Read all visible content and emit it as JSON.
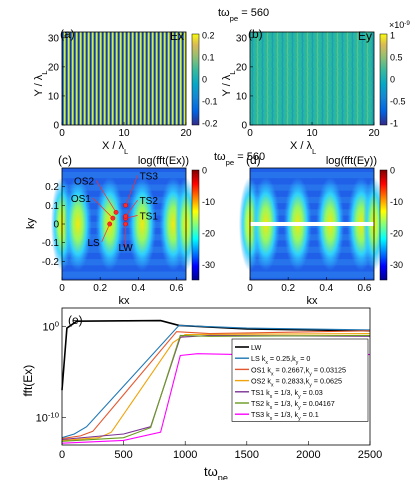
{
  "chart_data": [
    {
      "id": "a",
      "type": "heatmap",
      "panel_label": "(a)",
      "field_label": "Ex",
      "time_label": "tω",
      "time_sub": "pe",
      "time_value": "= 560",
      "xlabel": "X / λ",
      "xlabel_sub": "L",
      "ylabel": "Y / λ",
      "ylabel_sub": "L",
      "xlim": [
        0,
        20
      ],
      "ylim": [
        0,
        32
      ],
      "xticks": [
        "0",
        "10",
        "20"
      ],
      "yticks": [
        "0",
        "10",
        "20",
        "30"
      ],
      "colorbar": {
        "min": -0.2,
        "max": 0.2,
        "ticks": [
          "0.2",
          "0.1",
          "0",
          "-0.1",
          "-0.2"
        ],
        "multiplier": ""
      }
    },
    {
      "id": "b",
      "type": "heatmap",
      "panel_label": "(b)",
      "field_label": "Ey",
      "xlabel": "X / λ",
      "xlabel_sub": "L",
      "ylabel": "Y / λ",
      "ylabel_sub": "L",
      "xlim": [
        0,
        20
      ],
      "ylim": [
        0,
        32
      ],
      "xticks": [
        "0",
        "10",
        "20"
      ],
      "yticks": [
        "0",
        "10",
        "20",
        "30"
      ],
      "colorbar": {
        "min": -1,
        "max": 1,
        "ticks": [
          "1",
          "0.5",
          "0",
          "-0.5",
          "-1"
        ],
        "multiplier": "×10",
        "multiplier_exp": "-9"
      }
    },
    {
      "id": "c",
      "type": "heatmap",
      "panel_label": "(c)",
      "title": "log(fft(Ex))",
      "time_label": "tω",
      "time_sub": "pe",
      "time_value": "= 560",
      "xlabel": "kx",
      "ylabel": "ky",
      "xlim": [
        0,
        0.65
      ],
      "ylim": [
        -0.3,
        0.3
      ],
      "xticks": [
        "0",
        "0.2",
        "0.4",
        "0.6"
      ],
      "yticks": [
        "0.2",
        "0.1",
        "0",
        "-0.1",
        "-0.2"
      ],
      "colorbar": {
        "min": -35,
        "max": 0,
        "ticks": [
          "0",
          "-10",
          "-20",
          "-30"
        ]
      },
      "annotations": [
        {
          "label": "LS",
          "kx": 0.25,
          "ky": 0
        },
        {
          "label": "OS1",
          "kx": 0.2667,
          "ky": 0.03125
        },
        {
          "label": "OS2",
          "kx": 0.2833,
          "ky": 0.0625
        },
        {
          "label": "TS1",
          "kx": 0.3333,
          "ky": 0.03
        },
        {
          "label": "TS2",
          "kx": 0.3333,
          "ky": 0.04167
        },
        {
          "label": "TS3",
          "kx": 0.3333,
          "ky": 0.1
        },
        {
          "label": "LW",
          "kx": 0.3333,
          "ky": 0
        }
      ]
    },
    {
      "id": "d",
      "type": "heatmap",
      "panel_label": "(d)",
      "title": "log(fft(Ey))",
      "xlabel": "kx",
      "ylabel": "",
      "xlim": [
        0,
        0.65
      ],
      "ylim": [
        -0.3,
        0.3
      ],
      "xticks": [
        "0",
        "0.2",
        "0.4",
        "0.6"
      ],
      "yticks": [],
      "colorbar": {
        "min": -35,
        "max": 0,
        "ticks": [
          "0",
          "-10",
          "-20",
          "-30"
        ]
      }
    },
    {
      "id": "e",
      "type": "line",
      "panel_label": "(e)",
      "xlabel": "tω",
      "xlabel_sub": "pe",
      "ylabel": "fft(Ex)",
      "xlim": [
        0,
        2500
      ],
      "log_y": true,
      "ylim_log10": [
        -13,
        2
      ],
      "xticks": [
        "0",
        "500",
        "1000",
        "1500",
        "2000",
        "2500"
      ],
      "yticks": [
        {
          "base": "10",
          "exp": "0",
          "log10": 0
        },
        {
          "base": "10",
          "exp": "-10",
          "log10": -10
        }
      ],
      "legend_position": "right",
      "series": [
        {
          "name": "LW",
          "name_parts": [
            [
              "LW",
              ""
            ]
          ],
          "color": "#000000",
          "points": [
            [
              0,
              -7
            ],
            [
              40,
              -0.2
            ],
            [
              120,
              0.55
            ],
            [
              500,
              0.6
            ],
            [
              800,
              0.62
            ],
            [
              950,
              0.1
            ],
            [
              1500,
              -0.3
            ],
            [
              2500,
              -0.5
            ]
          ]
        },
        {
          "name": "LS  kx = 0.25, ky = 0",
          "name_parts": [
            [
              "LS  k",
              ""
            ],
            [
              "x",
              "sub"
            ],
            [
              " = 0.25,k",
              ""
            ],
            [
              "y",
              "sub"
            ],
            [
              " = 0",
              ""
            ]
          ],
          "color": "#1f77b4",
          "points": [
            [
              0,
              -12.2
            ],
            [
              100,
              -11.8
            ],
            [
              200,
              -11
            ],
            [
              950,
              0.1
            ],
            [
              1500,
              -0.2
            ],
            [
              2500,
              -0.4
            ]
          ]
        },
        {
          "name": "OS1  kx = 0.2667, ky = 0.03125",
          "name_parts": [
            [
              "OS1  k",
              ""
            ],
            [
              "x",
              "sub"
            ],
            [
              " = 0.2667,k",
              ""
            ],
            [
              "y",
              "sub"
            ],
            [
              " = 0.03125",
              ""
            ]
          ],
          "color": "#e4572e",
          "points": [
            [
              0,
              -12.3
            ],
            [
              150,
              -12
            ],
            [
              250,
              -11.5
            ],
            [
              930,
              -0.6
            ],
            [
              1200,
              -0.8
            ],
            [
              2500,
              -0.5
            ]
          ]
        },
        {
          "name": "OS2  kx = 0.2833, ky = 0.0625",
          "name_parts": [
            [
              "OS2  k",
              ""
            ],
            [
              "x",
              "sub"
            ],
            [
              " = 0.2833,k",
              ""
            ],
            [
              "y",
              "sub"
            ],
            [
              " = 0.0625",
              ""
            ]
          ],
          "color": "#f0a30a",
          "points": [
            [
              0,
              -12.5
            ],
            [
              300,
              -12.2
            ],
            [
              400,
              -11.6
            ],
            [
              900,
              -1.8
            ],
            [
              1000,
              -0.9
            ],
            [
              2500,
              -0.8
            ]
          ]
        },
        {
          "name": "TS1  kx = 1/3,  ky = 0.03",
          "name_parts": [
            [
              "TS1  k",
              ""
            ],
            [
              "x",
              "sub"
            ],
            [
              " = 1/3,  k",
              ""
            ],
            [
              "y",
              "sub"
            ],
            [
              " = 0.03",
              ""
            ]
          ],
          "color": "#7b3294",
          "points": [
            [
              0,
              -12.4
            ],
            [
              500,
              -11.8
            ],
            [
              720,
              -11
            ],
            [
              960,
              -1.2
            ],
            [
              1200,
              -1.0
            ],
            [
              2500,
              -1.1
            ]
          ]
        },
        {
          "name": "TS2  kx = 1/3,  ky = 0.04167",
          "name_parts": [
            [
              "TS2  k",
              ""
            ],
            [
              "x",
              "sub"
            ],
            [
              " = 1/3,  k",
              ""
            ],
            [
              "y",
              "sub"
            ],
            [
              " = 0.04167",
              ""
            ]
          ],
          "color": "#6a9a1f",
          "points": [
            [
              0,
              -12.6
            ],
            [
              500,
              -12.2
            ],
            [
              720,
              -11.1
            ],
            [
              960,
              -1.0
            ],
            [
              1200,
              -1.1
            ],
            [
              2500,
              -1.0
            ]
          ]
        },
        {
          "name": "TS3  kx = 1/3,  ky = 0.1",
          "name_parts": [
            [
              "TS3  k",
              ""
            ],
            [
              "x",
              "sub"
            ],
            [
              " = 1/3,  k",
              ""
            ],
            [
              "y",
              "sub"
            ],
            [
              " = 0.1",
              ""
            ]
          ],
          "color": "#ff00ff",
          "points": [
            [
              0,
              -12.8
            ],
            [
              500,
              -12.5
            ],
            [
              800,
              -11.6
            ],
            [
              960,
              -3.2
            ],
            [
              1100,
              -3.0
            ],
            [
              1450,
              -3.1
            ],
            [
              1700,
              -3.0
            ],
            [
              1850,
              -3.0
            ],
            [
              1920,
              -4.2
            ],
            [
              1980,
              -3.0
            ],
            [
              2150,
              -3.1
            ],
            [
              2250,
              -3.6
            ],
            [
              2320,
              -3.0
            ],
            [
              2500,
              -3.1
            ]
          ]
        }
      ]
    }
  ]
}
